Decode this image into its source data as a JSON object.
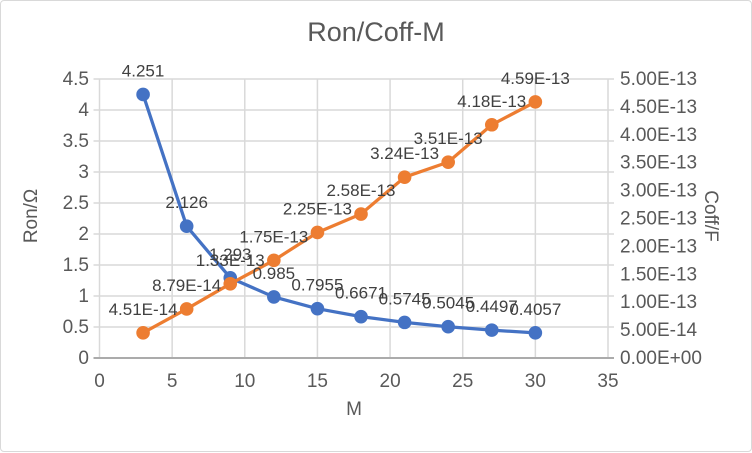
{
  "chart_data": {
    "type": "line",
    "title": "Ron/Coff-M",
    "xlabel": "M",
    "ylabel_left": "Ron/Ω",
    "ylabel_right": "Coff/F",
    "x": [
      3,
      6,
      9,
      12,
      15,
      18,
      21,
      24,
      27,
      30
    ],
    "series": [
      {
        "name": "Ron",
        "axis": "left",
        "color": "#4472C4",
        "values": [
          4.251,
          2.126,
          1.293,
          0.985,
          0.7955,
          0.6671,
          0.5745,
          0.5045,
          0.4497,
          0.4057
        ],
        "labels": [
          "4.251",
          "2.126",
          "1.293",
          "0.985",
          "0.7955",
          "0.6671",
          "0.5745",
          "0.5045",
          "0.4497",
          "0.4057"
        ]
      },
      {
        "name": "Coff",
        "axis": "right",
        "color": "#ED7D31",
        "values": [
          4.51e-14,
          8.79e-14,
          1.33e-13,
          1.75e-13,
          2.25e-13,
          2.58e-13,
          3.24e-13,
          3.51e-13,
          4.18e-13,
          4.59e-13
        ],
        "labels": [
          "4.51E-14",
          "8.79E-14",
          "1.33E-13",
          "1.75E-13",
          "2.25E-13",
          "2.58E-13",
          "3.24E-13",
          "3.51E-13",
          "4.18E-13",
          "4.59E-13"
        ]
      }
    ],
    "x_ticks": [
      "0",
      "5",
      "10",
      "15",
      "20",
      "25",
      "30",
      "35"
    ],
    "left_ticks": [
      "0",
      "0.5",
      "1",
      "1.5",
      "2",
      "2.5",
      "3",
      "3.5",
      "4",
      "4.5"
    ],
    "right_ticks": [
      "0.00E+00",
      "5.00E-14",
      "1.00E-13",
      "1.50E-13",
      "2.00E-13",
      "2.50E-13",
      "3.00E-13",
      "3.50E-13",
      "4.00E-13",
      "4.50E-13",
      "5.00E-13"
    ],
    "axis_ranges": {
      "x": {
        "min": 0,
        "max": 35,
        "step": 5
      },
      "left": {
        "min": 0,
        "max": 4.5,
        "step": 0.5
      },
      "right": {
        "min": 0,
        "max": 5e-13,
        "step": 5e-14
      }
    },
    "grid": "both",
    "legend": "none",
    "colors": {
      "grid": "#D9D9D9",
      "x_axis_line": "#ABABAB",
      "tick_text": "#595959",
      "title_text": "#595959",
      "data_label_text": "#404040"
    }
  }
}
